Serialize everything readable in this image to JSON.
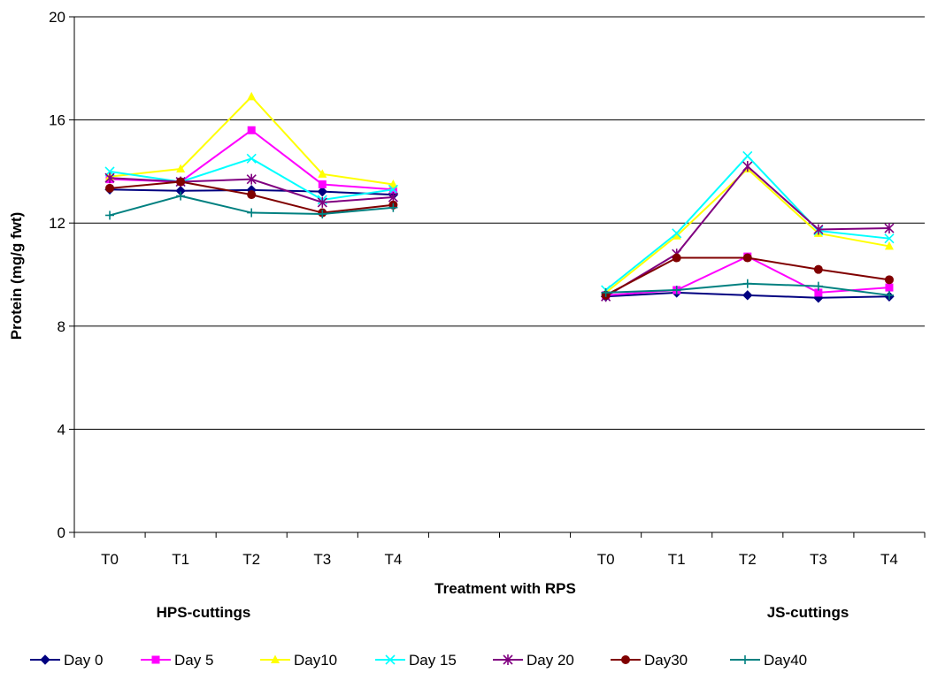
{
  "chart_data": {
    "type": "line",
    "title": "",
    "xlabel": "Treatment with RPS",
    "ylabel": "Protein (mg/g fwt)",
    "ylim": [
      0,
      20
    ],
    "yticks": [
      "0",
      "4",
      "8",
      "12",
      "16",
      "20"
    ],
    "grid": "horizontal",
    "legend_position": "bottom",
    "categories": [
      "T0",
      "T1",
      "T2",
      "T3",
      "T4",
      "",
      "",
      "T0",
      "T1",
      "T2",
      "T3",
      "T4"
    ],
    "group_labels": [
      "HPS-cuttings",
      "JS-cuttings"
    ],
    "series": [
      {
        "name": "Day 0",
        "color": "#000080",
        "marker": "diamond",
        "values": [
          13.3,
          13.25,
          13.28,
          13.22,
          13.1,
          null,
          null,
          9.15,
          9.3,
          9.2,
          9.1,
          9.15
        ]
      },
      {
        "name": "Day 5",
        "color": "#FF00FF",
        "marker": "square",
        "values": [
          13.7,
          13.6,
          15.6,
          13.5,
          13.3,
          null,
          null,
          9.2,
          9.4,
          10.7,
          9.3,
          9.5
        ]
      },
      {
        "name": "Day10",
        "color": "#FFFF00",
        "marker": "triangle",
        "values": [
          13.8,
          14.1,
          16.9,
          13.9,
          13.5,
          null,
          null,
          9.3,
          11.5,
          14.1,
          11.6,
          11.1
        ]
      },
      {
        "name": "Day 15",
        "color": "#00FFFF",
        "marker": "x",
        "values": [
          14.0,
          13.6,
          14.5,
          12.9,
          13.3,
          null,
          null,
          9.4,
          11.6,
          14.6,
          11.7,
          11.4
        ]
      },
      {
        "name": "Day 20",
        "color": "#800080",
        "marker": "star",
        "values": [
          13.75,
          13.6,
          13.7,
          12.8,
          13.0,
          null,
          null,
          9.15,
          10.8,
          14.2,
          11.75,
          11.8
        ]
      },
      {
        "name": "Day30",
        "color": "#800000",
        "marker": "circle",
        "values": [
          13.35,
          13.6,
          13.1,
          12.4,
          12.7,
          null,
          null,
          9.2,
          10.65,
          10.65,
          10.2,
          9.8
        ]
      },
      {
        "name": "Day40",
        "color": "#008080",
        "marker": "plus",
        "values": [
          12.3,
          13.05,
          12.4,
          12.35,
          12.6,
          null,
          null,
          9.3,
          9.4,
          9.65,
          9.55,
          9.2
        ]
      }
    ]
  }
}
